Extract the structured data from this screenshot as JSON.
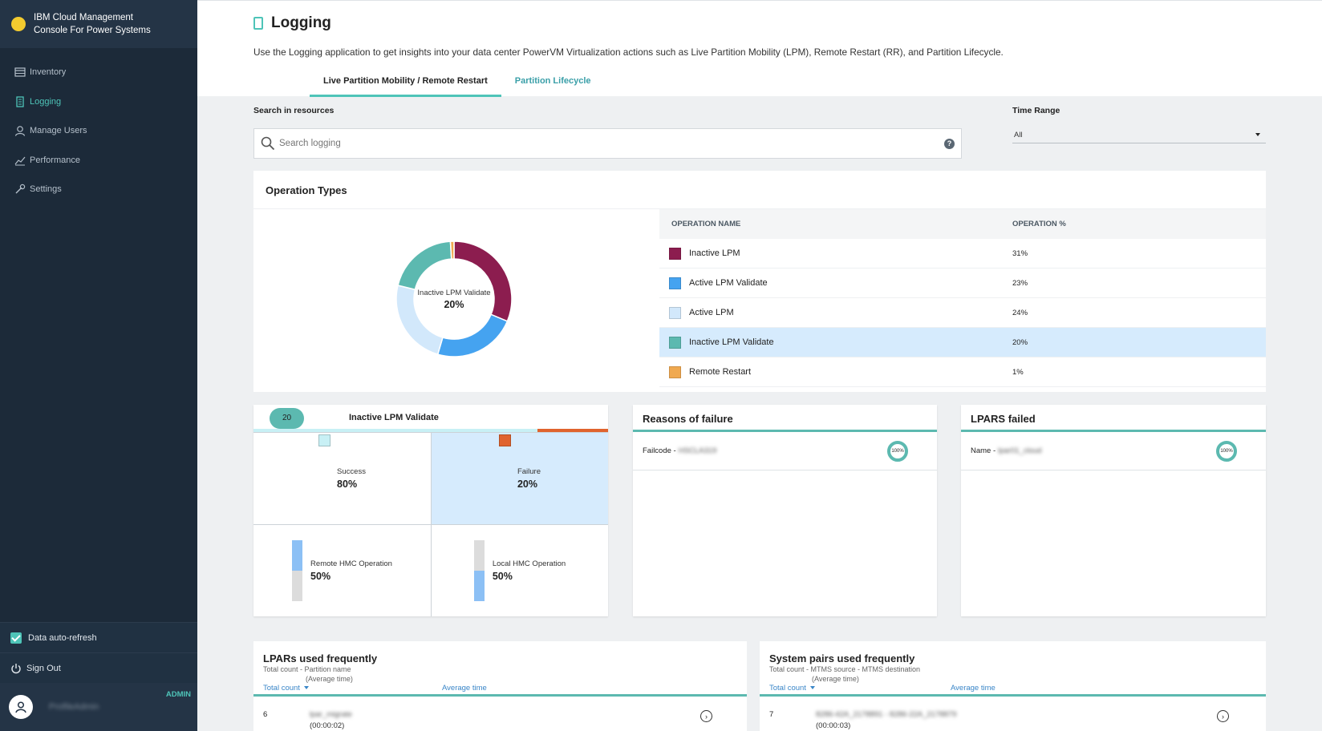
{
  "app": {
    "title_line1": "IBM Cloud Management",
    "title_line2": "Console For Power Systems"
  },
  "sidebar": {
    "items": [
      {
        "label": "Inventory",
        "icon": "inventory-icon"
      },
      {
        "label": "Logging",
        "icon": "logging-icon",
        "active": true
      },
      {
        "label": "Manage Users",
        "icon": "user-icon"
      },
      {
        "label": "Performance",
        "icon": "chart-icon"
      },
      {
        "label": "Settings",
        "icon": "wrench-icon"
      }
    ],
    "autorefresh_label": "Data auto-refresh",
    "signout_label": "Sign Out",
    "role": "ADMIN",
    "username": "ProfileAdmin"
  },
  "page": {
    "title": "Logging",
    "description": "Use the Logging application to get insights into your data center PowerVM Virtualization actions such as Live Partition Mobility (LPM), Remote Restart (RR), and Partition Lifecycle.",
    "tabs": [
      {
        "label": "Live Partition Mobility / Remote Restart",
        "active": true
      },
      {
        "label": "Partition Lifecycle",
        "active": false
      }
    ]
  },
  "search": {
    "label": "Search in resources",
    "placeholder": "Search logging",
    "help": "?"
  },
  "time_range": {
    "label": "Time Range",
    "value": "All"
  },
  "operation_types": {
    "title": "Operation Types",
    "col_name": "OPERATION NAME",
    "col_pct": "OPERATION %",
    "center_label": "Inactive LPM Validate",
    "center_pct": "20%",
    "rows": [
      {
        "name": "Inactive LPM",
        "pct": "31%",
        "color": "#8c1d4f"
      },
      {
        "name": "Active LPM Validate",
        "pct": "23%",
        "color": "#45a3f0"
      },
      {
        "name": "Active LPM",
        "pct": "24%",
        "color": "#d2e8fb"
      },
      {
        "name": "Inactive LPM Validate",
        "pct": "20%",
        "color": "#5cb9b0",
        "selected": true
      },
      {
        "name": "Remote Restart",
        "pct": "1%",
        "color": "#f0a950"
      }
    ]
  },
  "chart_data": {
    "type": "pie",
    "categories": [
      "Inactive LPM",
      "Active LPM Validate",
      "Active LPM",
      "Inactive LPM Validate",
      "Remote Restart"
    ],
    "values": [
      31,
      23,
      24,
      20,
      1
    ],
    "colors": [
      "#8c1d4f",
      "#45a3f0",
      "#d2e8fb",
      "#5cb9b0",
      "#f0a950"
    ],
    "order_cw_from_top": [
      "Inactive LPM",
      "Active LPM Validate",
      "Active LPM",
      "Inactive LPM Validate",
      "Remote Restart"
    ]
  },
  "detail": {
    "count": "20",
    "title": "Inactive LPM Validate",
    "success": {
      "label": "Success",
      "pct": "80%",
      "color": "#c8f0f5",
      "value": 0.8
    },
    "failure": {
      "label": "Failure",
      "pct": "20%",
      "color": "#e0632e",
      "value": 0.2
    },
    "remote": {
      "label": "Remote HMC Operation",
      "pct": "50%",
      "value": 0.5
    },
    "local": {
      "label": "Local HMC Operation",
      "pct": "50%",
      "value": 0.5
    }
  },
  "reasons": {
    "title": "Reasons of failure",
    "row_label": "Failcode -",
    "row_value": "HSCLA319",
    "ring": "100%"
  },
  "lpars_failed": {
    "title": "LPARS failed",
    "row_label": "Name -",
    "row_value": "lpar01_cloud",
    "ring": "100%"
  },
  "lpars_frequent": {
    "title": "LPARs used frequently",
    "subtitle1": "Total count - Partition name",
    "subtitle2": "(Average time)",
    "col_count": "Total count",
    "col_avg": "Average time",
    "row": {
      "count": "6",
      "name": "lpar_migrate",
      "time": "(00:00:02)"
    }
  },
  "systems_frequent": {
    "title": "System pairs used frequently",
    "subtitle1": "Total count - MTMS source - MTMS destination",
    "subtitle2": "(Average time)",
    "col_count": "Total count",
    "col_avg": "Average time",
    "row": {
      "count": "7",
      "name": "8286-42A_2178891 - 8286-22A_2178879",
      "time": "(00:00:03)"
    }
  }
}
